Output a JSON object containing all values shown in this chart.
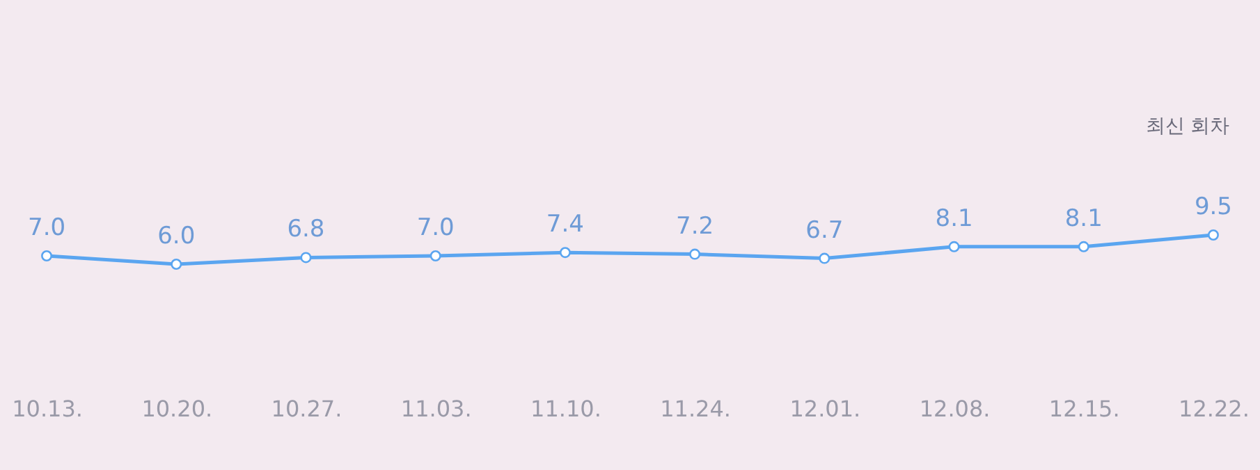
{
  "chart_data": {
    "type": "line",
    "categories": [
      "10.13.",
      "10.20.",
      "10.27.",
      "11.03.",
      "11.10.",
      "11.24.",
      "12.01.",
      "12.08.",
      "12.15.",
      "12.22."
    ],
    "series": [
      {
        "color": "#5aa5f0",
        "values": [
          7.0,
          6.0,
          6.8,
          7.0,
          7.4,
          7.2,
          6.7,
          8.1,
          8.1,
          9.5
        ],
        "value_labels": [
          "7.0",
          "6.0",
          "6.8",
          "7.0",
          "7.4",
          "7.2",
          "6.7",
          "8.1",
          "8.1",
          "9.5"
        ]
      }
    ],
    "marker": "circle",
    "annotations": [
      "최신 회차"
    ]
  }
}
